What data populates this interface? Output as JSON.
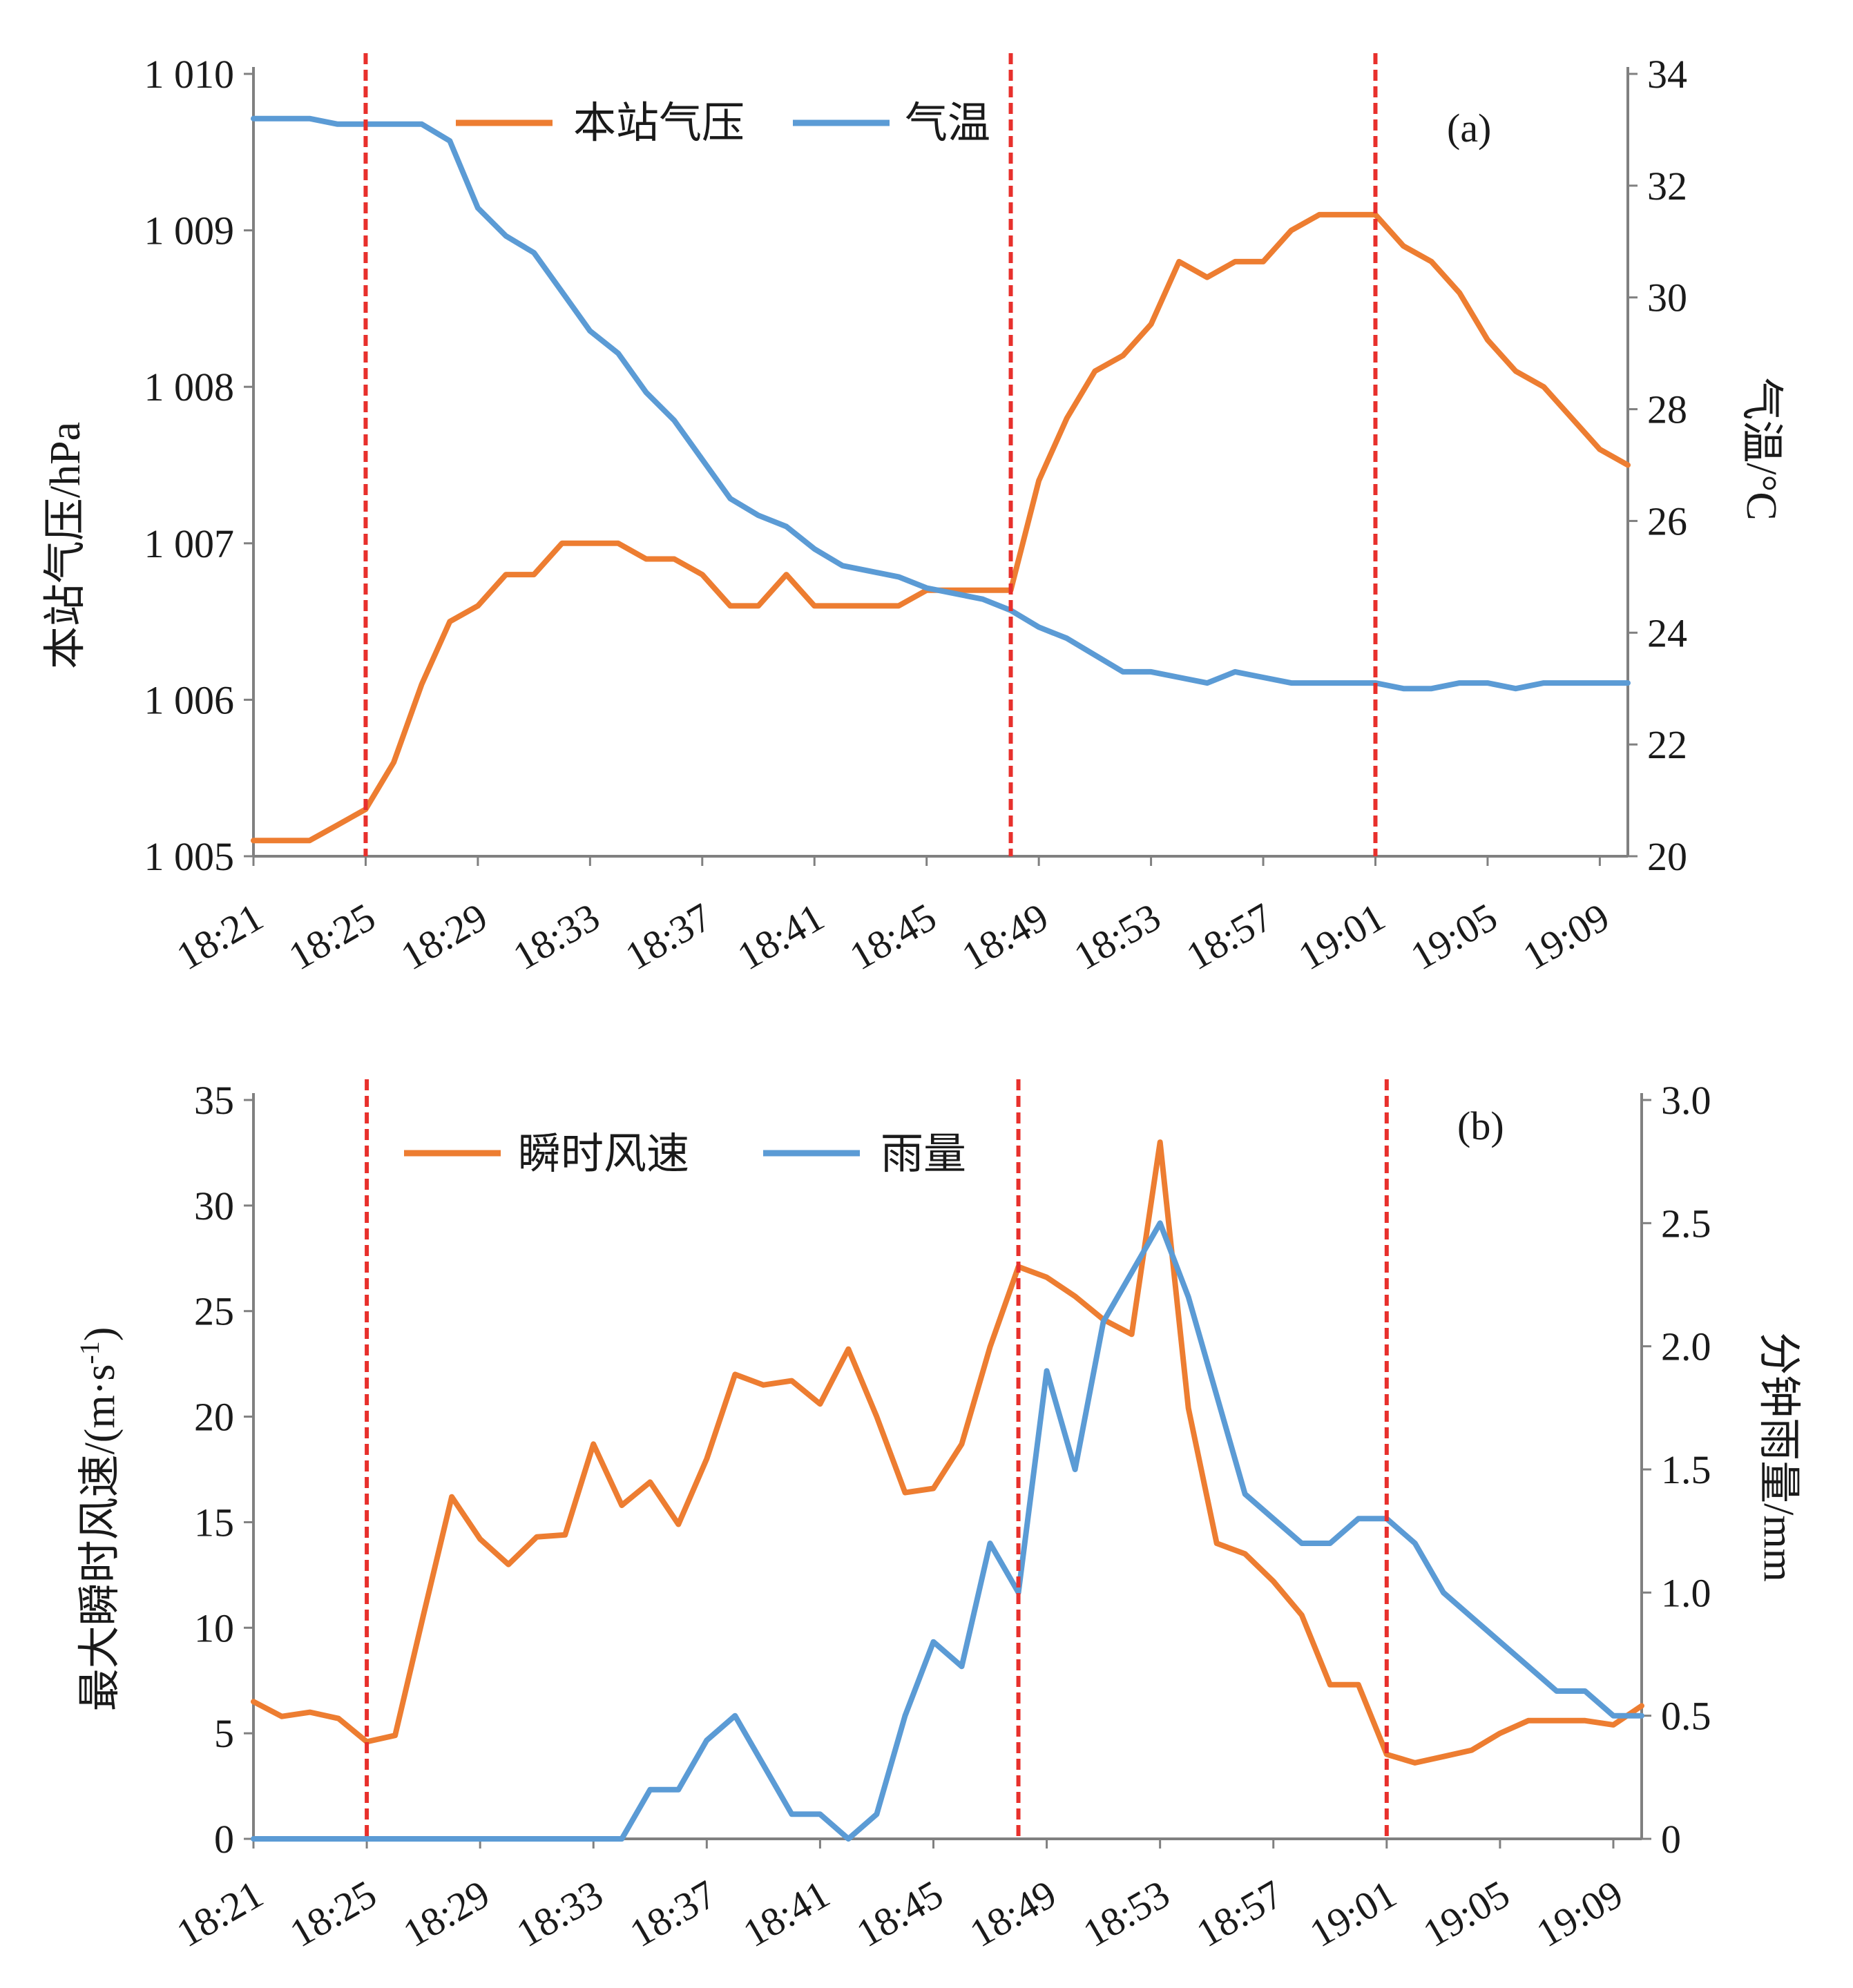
{
  "chart_data": [
    {
      "type": "line",
      "panel_label": "(a)",
      "x_ticks": [
        "18:21",
        "18:25",
        "18:29",
        "18:33",
        "18:37",
        "18:41",
        "18:45",
        "18:49",
        "18:53",
        "18:57",
        "19:01",
        "19:05",
        "19:09"
      ],
      "x_range_minutes": [
        "18:21",
        "19:10"
      ],
      "ylabel_left": "本站气压/hPa",
      "ylabel_right": "气温/°C",
      "ylim_left": [
        1005,
        1010
      ],
      "ylim_right": [
        20,
        34
      ],
      "yticks_left": [
        "1 005",
        "1 006",
        "1 007",
        "1 008",
        "1 009",
        "1 010"
      ],
      "yticks_right": [
        "20",
        "22",
        "24",
        "26",
        "28",
        "30",
        "32",
        "34"
      ],
      "legend_position": "top",
      "grid": false,
      "event_lines": [
        "18:25",
        "18:48",
        "19:01"
      ],
      "event_line_color": "#e8302c",
      "series": [
        {
          "name": "本站气压",
          "axis": "left",
          "color": "#ed7d31",
          "x": [
            "18:21",
            "18:22",
            "18:23",
            "18:24",
            "18:25",
            "18:26",
            "18:27",
            "18:28",
            "18:29",
            "18:30",
            "18:31",
            "18:32",
            "18:33",
            "18:34",
            "18:35",
            "18:36",
            "18:37",
            "18:38",
            "18:39",
            "18:40",
            "18:41",
            "18:42",
            "18:43",
            "18:44",
            "18:45",
            "18:46",
            "18:47",
            "18:48",
            "18:49",
            "18:50",
            "18:51",
            "18:52",
            "18:53",
            "18:54",
            "18:55",
            "18:56",
            "18:57",
            "18:58",
            "18:59",
            "19:00",
            "19:01",
            "19:02",
            "19:03",
            "19:04",
            "19:05",
            "19:06",
            "19:07",
            "19:08",
            "19:09",
            "19:10"
          ],
          "values": [
            1005.1,
            1005.1,
            1005.1,
            1005.2,
            1005.3,
            1005.6,
            1006.1,
            1006.5,
            1006.6,
            1006.8,
            1006.8,
            1007.0,
            1007.0,
            1007.0,
            1006.9,
            1006.9,
            1006.8,
            1006.6,
            1006.6,
            1006.8,
            1006.6,
            1006.6,
            1006.6,
            1006.6,
            1006.7,
            1006.7,
            1006.7,
            1006.7,
            1007.4,
            1007.8,
            1008.1,
            1008.2,
            1008.4,
            1008.8,
            1008.7,
            1008.8,
            1008.8,
            1009.0,
            1009.1,
            1009.1,
            1009.1,
            1008.9,
            1008.8,
            1008.6,
            1008.3,
            1008.1,
            1008.0,
            1007.8,
            1007.6,
            1007.5
          ]
        },
        {
          "name": "气温",
          "axis": "right",
          "color": "#5b9bd5",
          "x": [
            "18:21",
            "18:22",
            "18:23",
            "18:24",
            "18:25",
            "18:26",
            "18:27",
            "18:28",
            "18:29",
            "18:30",
            "18:31",
            "18:32",
            "18:33",
            "18:34",
            "18:35",
            "18:36",
            "18:37",
            "18:38",
            "18:39",
            "18:40",
            "18:41",
            "18:42",
            "18:43",
            "18:44",
            "18:45",
            "18:46",
            "18:47",
            "18:48",
            "18:49",
            "18:50",
            "18:51",
            "18:52",
            "18:53",
            "18:54",
            "18:55",
            "18:56",
            "18:57",
            "18:58",
            "18:59",
            "19:00",
            "19:01",
            "19:02",
            "19:03",
            "19:04",
            "19:05",
            "19:06",
            "19:07",
            "19:08",
            "19:09",
            "19:10"
          ],
          "values": [
            33.2,
            33.2,
            33.2,
            33.1,
            33.1,
            33.1,
            33.1,
            32.8,
            31.6,
            31.1,
            30.8,
            30.1,
            29.4,
            29.0,
            28.3,
            27.8,
            27.1,
            26.4,
            26.1,
            25.9,
            25.5,
            25.2,
            25.1,
            25.0,
            24.8,
            24.7,
            24.6,
            24.4,
            24.1,
            23.9,
            23.6,
            23.3,
            23.3,
            23.2,
            23.1,
            23.3,
            23.2,
            23.1,
            23.1,
            23.1,
            23.1,
            23.0,
            23.0,
            23.1,
            23.1,
            23.0,
            23.1,
            23.1,
            23.1,
            23.1
          ]
        }
      ]
    },
    {
      "type": "line",
      "panel_label": "(b)",
      "x_ticks": [
        "18:21",
        "18:25",
        "18:29",
        "18:33",
        "18:37",
        "18:41",
        "18:45",
        "18:49",
        "18:53",
        "18:57",
        "19:01",
        "19:05",
        "19:09"
      ],
      "x_range_minutes": [
        "18:21",
        "19:10"
      ],
      "ylabel_left": "最大瞬时风速/(m·s-1)",
      "ylabel_left_main": "最大瞬时风速/(m·s",
      "ylabel_left_sup": "-1",
      "ylabel_left_end": ")",
      "ylabel_right": "分钟雨量/mm",
      "ylim_left": [
        0,
        35
      ],
      "ylim_right": [
        0,
        3.0
      ],
      "yticks_left": [
        "0",
        "5",
        "10",
        "15",
        "20",
        "25",
        "30",
        "35"
      ],
      "yticks_right": [
        "0",
        "0.5",
        "1.0",
        "1.5",
        "2.0",
        "2.5",
        "3.0"
      ],
      "legend_position": "top",
      "grid": false,
      "event_lines": [
        "18:25",
        "18:48",
        "19:01"
      ],
      "event_line_color": "#e8302c",
      "series": [
        {
          "name": "瞬时风速",
          "axis": "left",
          "color": "#ed7d31",
          "x": [
            "18:21",
            "18:22",
            "18:23",
            "18:24",
            "18:25",
            "18:26",
            "18:27",
            "18:28",
            "18:29",
            "18:30",
            "18:31",
            "18:32",
            "18:33",
            "18:34",
            "18:35",
            "18:36",
            "18:37",
            "18:38",
            "18:39",
            "18:40",
            "18:41",
            "18:42",
            "18:43",
            "18:44",
            "18:45",
            "18:46",
            "18:47",
            "18:48",
            "18:49",
            "18:50",
            "18:51",
            "18:52",
            "18:53",
            "18:54",
            "18:55",
            "18:56",
            "18:57",
            "18:58",
            "18:59",
            "19:00",
            "19:01",
            "19:02",
            "19:03",
            "19:04",
            "19:05",
            "19:06",
            "19:07",
            "19:08",
            "19:09",
            "19:10"
          ],
          "values": [
            6.5,
            5.8,
            6.0,
            5.7,
            4.6,
            4.9,
            10.6,
            16.2,
            14.2,
            13.0,
            14.3,
            14.4,
            18.7,
            15.8,
            16.9,
            14.9,
            18.0,
            22.0,
            21.5,
            21.7,
            20.6,
            23.2,
            20.0,
            16.4,
            16.6,
            18.7,
            23.3,
            27.1,
            26.6,
            25.7,
            24.6,
            23.9,
            33.0,
            20.4,
            14.0,
            13.5,
            12.2,
            10.6,
            7.3,
            7.3,
            4.0,
            3.6,
            3.9,
            4.2,
            5.0,
            5.6,
            5.6,
            5.6,
            5.4,
            6.3
          ]
        },
        {
          "name": "雨量",
          "axis": "right",
          "color": "#5b9bd5",
          "x": [
            "18:21",
            "18:22",
            "18:23",
            "18:24",
            "18:25",
            "18:26",
            "18:27",
            "18:28",
            "18:29",
            "18:30",
            "18:31",
            "18:32",
            "18:33",
            "18:34",
            "18:35",
            "18:36",
            "18:37",
            "18:38",
            "18:39",
            "18:40",
            "18:41",
            "18:42",
            "18:43",
            "18:44",
            "18:45",
            "18:46",
            "18:47",
            "18:48",
            "18:49",
            "18:50",
            "18:51",
            "18:52",
            "18:53",
            "18:54",
            "18:55",
            "18:56",
            "18:57",
            "18:58",
            "18:59",
            "19:00",
            "19:01",
            "19:02",
            "19:03",
            "19:04",
            "19:05",
            "19:06",
            "19:07",
            "19:08",
            "19:09",
            "19:10"
          ],
          "values": [
            0,
            0,
            0,
            0,
            0,
            0,
            0,
            0,
            0,
            0,
            0,
            0,
            0,
            0,
            0.2,
            0.2,
            0.4,
            0.5,
            0.3,
            0.1,
            0.1,
            0,
            0.1,
            0.5,
            0.8,
            0.7,
            1.2,
            1.0,
            1.9,
            1.5,
            2.1,
            2.3,
            2.5,
            2.2,
            1.8,
            1.4,
            1.3,
            1.2,
            1.2,
            1.3,
            1.3,
            1.2,
            1.0,
            0.9,
            0.8,
            0.7,
            0.6,
            0.6,
            0.5,
            0.5
          ]
        }
      ]
    }
  ]
}
